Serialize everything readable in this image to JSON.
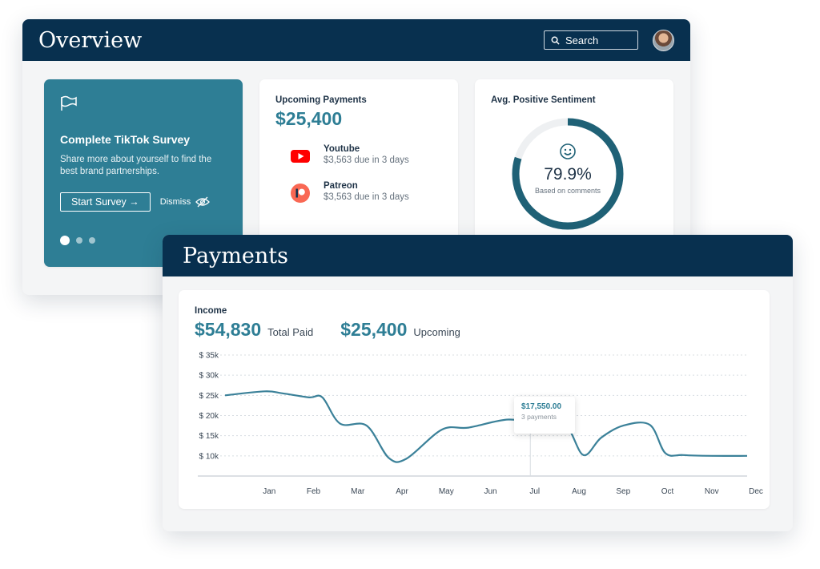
{
  "overview": {
    "title": "Overview",
    "search": {
      "label": "Search"
    },
    "survey": {
      "title": "Complete TikTok Survey",
      "description": "Share more about yourself to find the best brand partnerships.",
      "start_label": "Start Survey →",
      "dismiss_label": "Dismiss",
      "carousel": {
        "count": 3,
        "active": 0
      }
    },
    "upcoming": {
      "label": "Upcoming Payments",
      "amount": "$25,400",
      "items": [
        {
          "name": "Youtube",
          "detail": "$3,563 due in 3 days",
          "icon": "youtube-icon"
        },
        {
          "name": "Patreon",
          "detail": "$3,563 due in 3 days",
          "icon": "patreon-icon"
        }
      ]
    },
    "sentiment": {
      "label": "Avg. Positive Sentiment",
      "value_text": "79.9%",
      "value": 79.9,
      "sub": "Based on comments"
    }
  },
  "payments": {
    "title": "Payments",
    "income": {
      "label": "Income",
      "paid_amount": "$54,830",
      "paid_label": "Total Paid",
      "upcoming_amount": "$25,400",
      "upcoming_label": "Upcoming"
    },
    "tooltip": {
      "value": "$17,550.00",
      "sub": "3 payments"
    }
  },
  "colors": {
    "navy": "#08304f",
    "teal": "#2e7e95",
    "youtube": "#ff0000",
    "patreon": "#f96854"
  },
  "chart_data": {
    "type": "line",
    "x_labels": [
      "Jan",
      "Feb",
      "Mar",
      "Apr",
      "May",
      "Jun",
      "Jul",
      "Aug",
      "Sep",
      "Oct",
      "Nov",
      "Dec"
    ],
    "y_tick_labels": [
      "$ 35k",
      "$ 30k",
      "$ 25k",
      "$ 20k",
      "$ 15k",
      "$ 10k"
    ],
    "y_ticks": [
      35000,
      30000,
      25000,
      20000,
      15000,
      10000
    ],
    "ylim": [
      5000,
      35000
    ],
    "xlim": [
      -1.0,
      10.8
    ],
    "series": [
      {
        "x": [
          -1.0,
          -0.1,
          0.3,
          0.9,
          1.2,
          1.6,
          2.2,
          2.7,
          3.1,
          3.9,
          4.5,
          5.4,
          6.1,
          6.7,
          7.1,
          7.5,
          8.0,
          8.6,
          8.95,
          9.35,
          10.0,
          10.8
        ],
        "y": [
          25000,
          26000,
          25500,
          24500,
          24500,
          18000,
          17500,
          9500,
          9300,
          16500,
          17000,
          19000,
          17800,
          17500,
          10200,
          14500,
          17500,
          17700,
          10700,
          10200,
          10000,
          10000
        ]
      }
    ],
    "highlight": {
      "x": 5.9,
      "y": 17550
    },
    "grid": true,
    "legend": false
  }
}
